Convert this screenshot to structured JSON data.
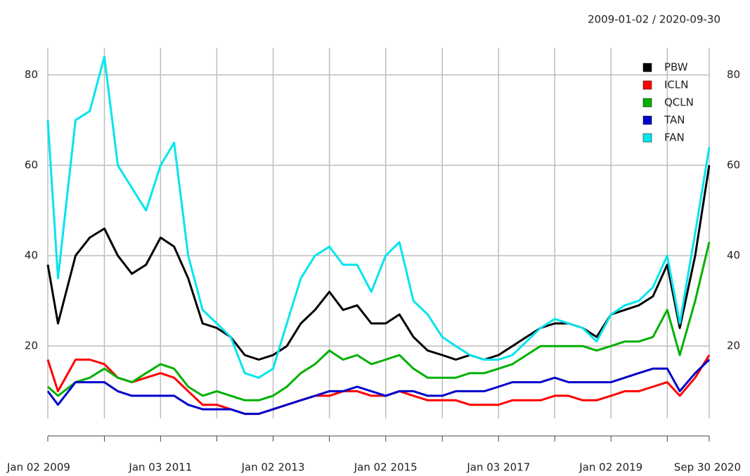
{
  "chart_data": {
    "type": "line",
    "date_range": "2009-01-02 / 2020-09-30",
    "x": [
      "2009-01-02",
      "2009-03-09",
      "2009-07-01",
      "2009-10-01",
      "2010-01-04",
      "2010-04-01",
      "2010-07-01",
      "2010-10-01",
      "2011-01-03",
      "2011-04-01",
      "2011-07-01",
      "2011-10-03",
      "2012-01-03",
      "2012-04-02",
      "2012-07-02",
      "2012-10-01",
      "2013-01-02",
      "2013-04-01",
      "2013-07-01",
      "2013-10-01",
      "2014-01-02",
      "2014-04-01",
      "2014-07-01",
      "2014-10-01",
      "2015-01-02",
      "2015-04-01",
      "2015-07-01",
      "2015-10-01",
      "2016-01-04",
      "2016-04-01",
      "2016-07-01",
      "2016-10-03",
      "2017-01-03",
      "2017-04-03",
      "2017-07-03",
      "2017-10-02",
      "2018-01-02",
      "2018-04-02",
      "2018-07-02",
      "2018-10-01",
      "2019-01-02",
      "2019-04-01",
      "2019-07-01",
      "2019-10-01",
      "2020-01-02",
      "2020-03-23",
      "2020-07-01",
      "2020-09-30"
    ],
    "series": [
      {
        "name": "PBW",
        "color": "#000000",
        "values": [
          38,
          25,
          40,
          44,
          46,
          40,
          36,
          38,
          44,
          42,
          35,
          25,
          24,
          22,
          18,
          17,
          18,
          20,
          25,
          28,
          32,
          28,
          29,
          25,
          25,
          27,
          22,
          19,
          18,
          17,
          18,
          17,
          18,
          20,
          22,
          24,
          25,
          25,
          24,
          22,
          27,
          28,
          29,
          31,
          38,
          24,
          40,
          60
        ]
      },
      {
        "name": "ICLN",
        "color": "#ff0000",
        "values": [
          17,
          10,
          17,
          17,
          16,
          13,
          12,
          13,
          14,
          13,
          10,
          7,
          7,
          6,
          5,
          5,
          6,
          7,
          8,
          9,
          9,
          10,
          10,
          9,
          9,
          10,
          9,
          8,
          8,
          8,
          7,
          7,
          7,
          8,
          8,
          8,
          9,
          9,
          8,
          8,
          9,
          10,
          10,
          11,
          12,
          9,
          13,
          18
        ]
      },
      {
        "name": "QCLN",
        "color": "#00b000",
        "values": [
          11,
          9,
          12,
          13,
          15,
          13,
          12,
          14,
          16,
          15,
          11,
          9,
          10,
          9,
          8,
          8,
          9,
          11,
          14,
          16,
          19,
          17,
          18,
          16,
          17,
          18,
          15,
          13,
          13,
          13,
          14,
          14,
          15,
          16,
          18,
          20,
          20,
          20,
          20,
          19,
          20,
          21,
          21,
          22,
          28,
          18,
          30,
          43
        ]
      },
      {
        "name": "TAN",
        "color": "#0000cc",
        "values": [
          10,
          7,
          12,
          12,
          12,
          10,
          9,
          9,
          9,
          9,
          7,
          6,
          6,
          6,
          5,
          5,
          6,
          7,
          8,
          9,
          10,
          10,
          11,
          10,
          9,
          10,
          10,
          9,
          9,
          10,
          10,
          10,
          11,
          12,
          12,
          12,
          13,
          12,
          12,
          12,
          12,
          13,
          14,
          15,
          15,
          10,
          14,
          17
        ]
      },
      {
        "name": "FAN",
        "color": "#00e5ee",
        "values": [
          70,
          35,
          70,
          72,
          84,
          60,
          55,
          50,
          60,
          65,
          40,
          28,
          25,
          22,
          14,
          13,
          15,
          25,
          35,
          40,
          42,
          38,
          38,
          32,
          40,
          43,
          30,
          27,
          22,
          20,
          18,
          17,
          17,
          18,
          21,
          24,
          26,
          25,
          24,
          21,
          27,
          29,
          30,
          33,
          40,
          25,
          45,
          64
        ]
      }
    ],
    "xlim": [
      "2009-01-02",
      "2020-09-30"
    ],
    "xticks": [
      {
        "value": "2009-01-02",
        "label": "Jan 02 2009"
      },
      {
        "value": "2010-01-04",
        "label": null
      },
      {
        "value": "2011-01-03",
        "label": "Jan 03 2011"
      },
      {
        "value": "2012-01-03",
        "label": null
      },
      {
        "value": "2013-01-02",
        "label": "Jan 02 2013"
      },
      {
        "value": "2014-01-02",
        "label": null
      },
      {
        "value": "2015-01-02",
        "label": "Jan 02 2015"
      },
      {
        "value": "2016-01-04",
        "label": null
      },
      {
        "value": "2017-01-03",
        "label": "Jan 03 2017"
      },
      {
        "value": "2018-01-02",
        "label": null
      },
      {
        "value": "2019-01-02",
        "label": "Jan 02 2019"
      },
      {
        "value": "2020-01-02",
        "label": null
      },
      {
        "value": "2020-09-30",
        "label": "Sep 30 2020"
      }
    ],
    "ylim": [
      4,
      86
    ],
    "yticks": [
      20,
      40,
      60,
      80
    ],
    "grid": true,
    "legend": "top-right"
  }
}
